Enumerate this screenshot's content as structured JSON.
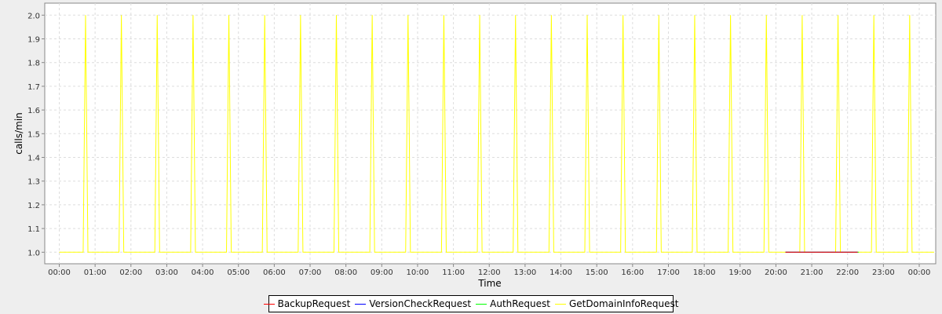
{
  "chart_data": {
    "type": "line",
    "title": "",
    "xlabel": "Time",
    "ylabel": "calls/min",
    "xlim": [
      "00:00",
      "24:00"
    ],
    "ylim": [
      0.95,
      2.05
    ],
    "grid": true,
    "legend_position": "bottom",
    "x_tick_labels": [
      "00:00",
      "01:00",
      "02:00",
      "03:00",
      "04:00",
      "05:00",
      "06:00",
      "07:00",
      "08:00",
      "09:00",
      "10:00",
      "11:00",
      "12:00",
      "13:00",
      "14:00",
      "15:00",
      "16:00",
      "17:00",
      "18:00",
      "19:00",
      "20:00",
      "21:00",
      "22:00",
      "23:00",
      "00:00"
    ],
    "y_tick_labels": [
      "1.0",
      "1.1",
      "1.2",
      "1.3",
      "1.4",
      "1.5",
      "1.6",
      "1.7",
      "1.8",
      "1.9",
      "2.0"
    ],
    "series": [
      {
        "name": "BackupRequest",
        "color": "#ff0000",
        "points": [
          [
            "20:16",
            1
          ],
          [
            "22:17",
            1
          ]
        ]
      },
      {
        "name": "VersionCheckRequest",
        "color": "#0000ff",
        "points": [
          [
            "20:16",
            1
          ],
          [
            "22:17",
            1
          ]
        ]
      },
      {
        "name": "AuthRequest",
        "color": "#00ff00",
        "points": [
          [
            "20:16",
            1
          ],
          [
            "22:19",
            1
          ]
        ]
      },
      {
        "name": "GetDomainInfoRequest",
        "color": "#ffff00",
        "baseline": 1,
        "spike_value": 2,
        "spike_times": [
          "00:44",
          "01:44",
          "02:44",
          "03:44",
          "04:44",
          "05:44",
          "06:44",
          "07:44",
          "08:44",
          "09:44",
          "10:44",
          "11:44",
          "12:44",
          "13:44",
          "14:44",
          "15:44",
          "16:44",
          "17:44",
          "18:44",
          "19:44",
          "20:44",
          "21:44",
          "22:44",
          "23:44"
        ],
        "range": [
          "00:00",
          "24:00"
        ]
      }
    ]
  }
}
